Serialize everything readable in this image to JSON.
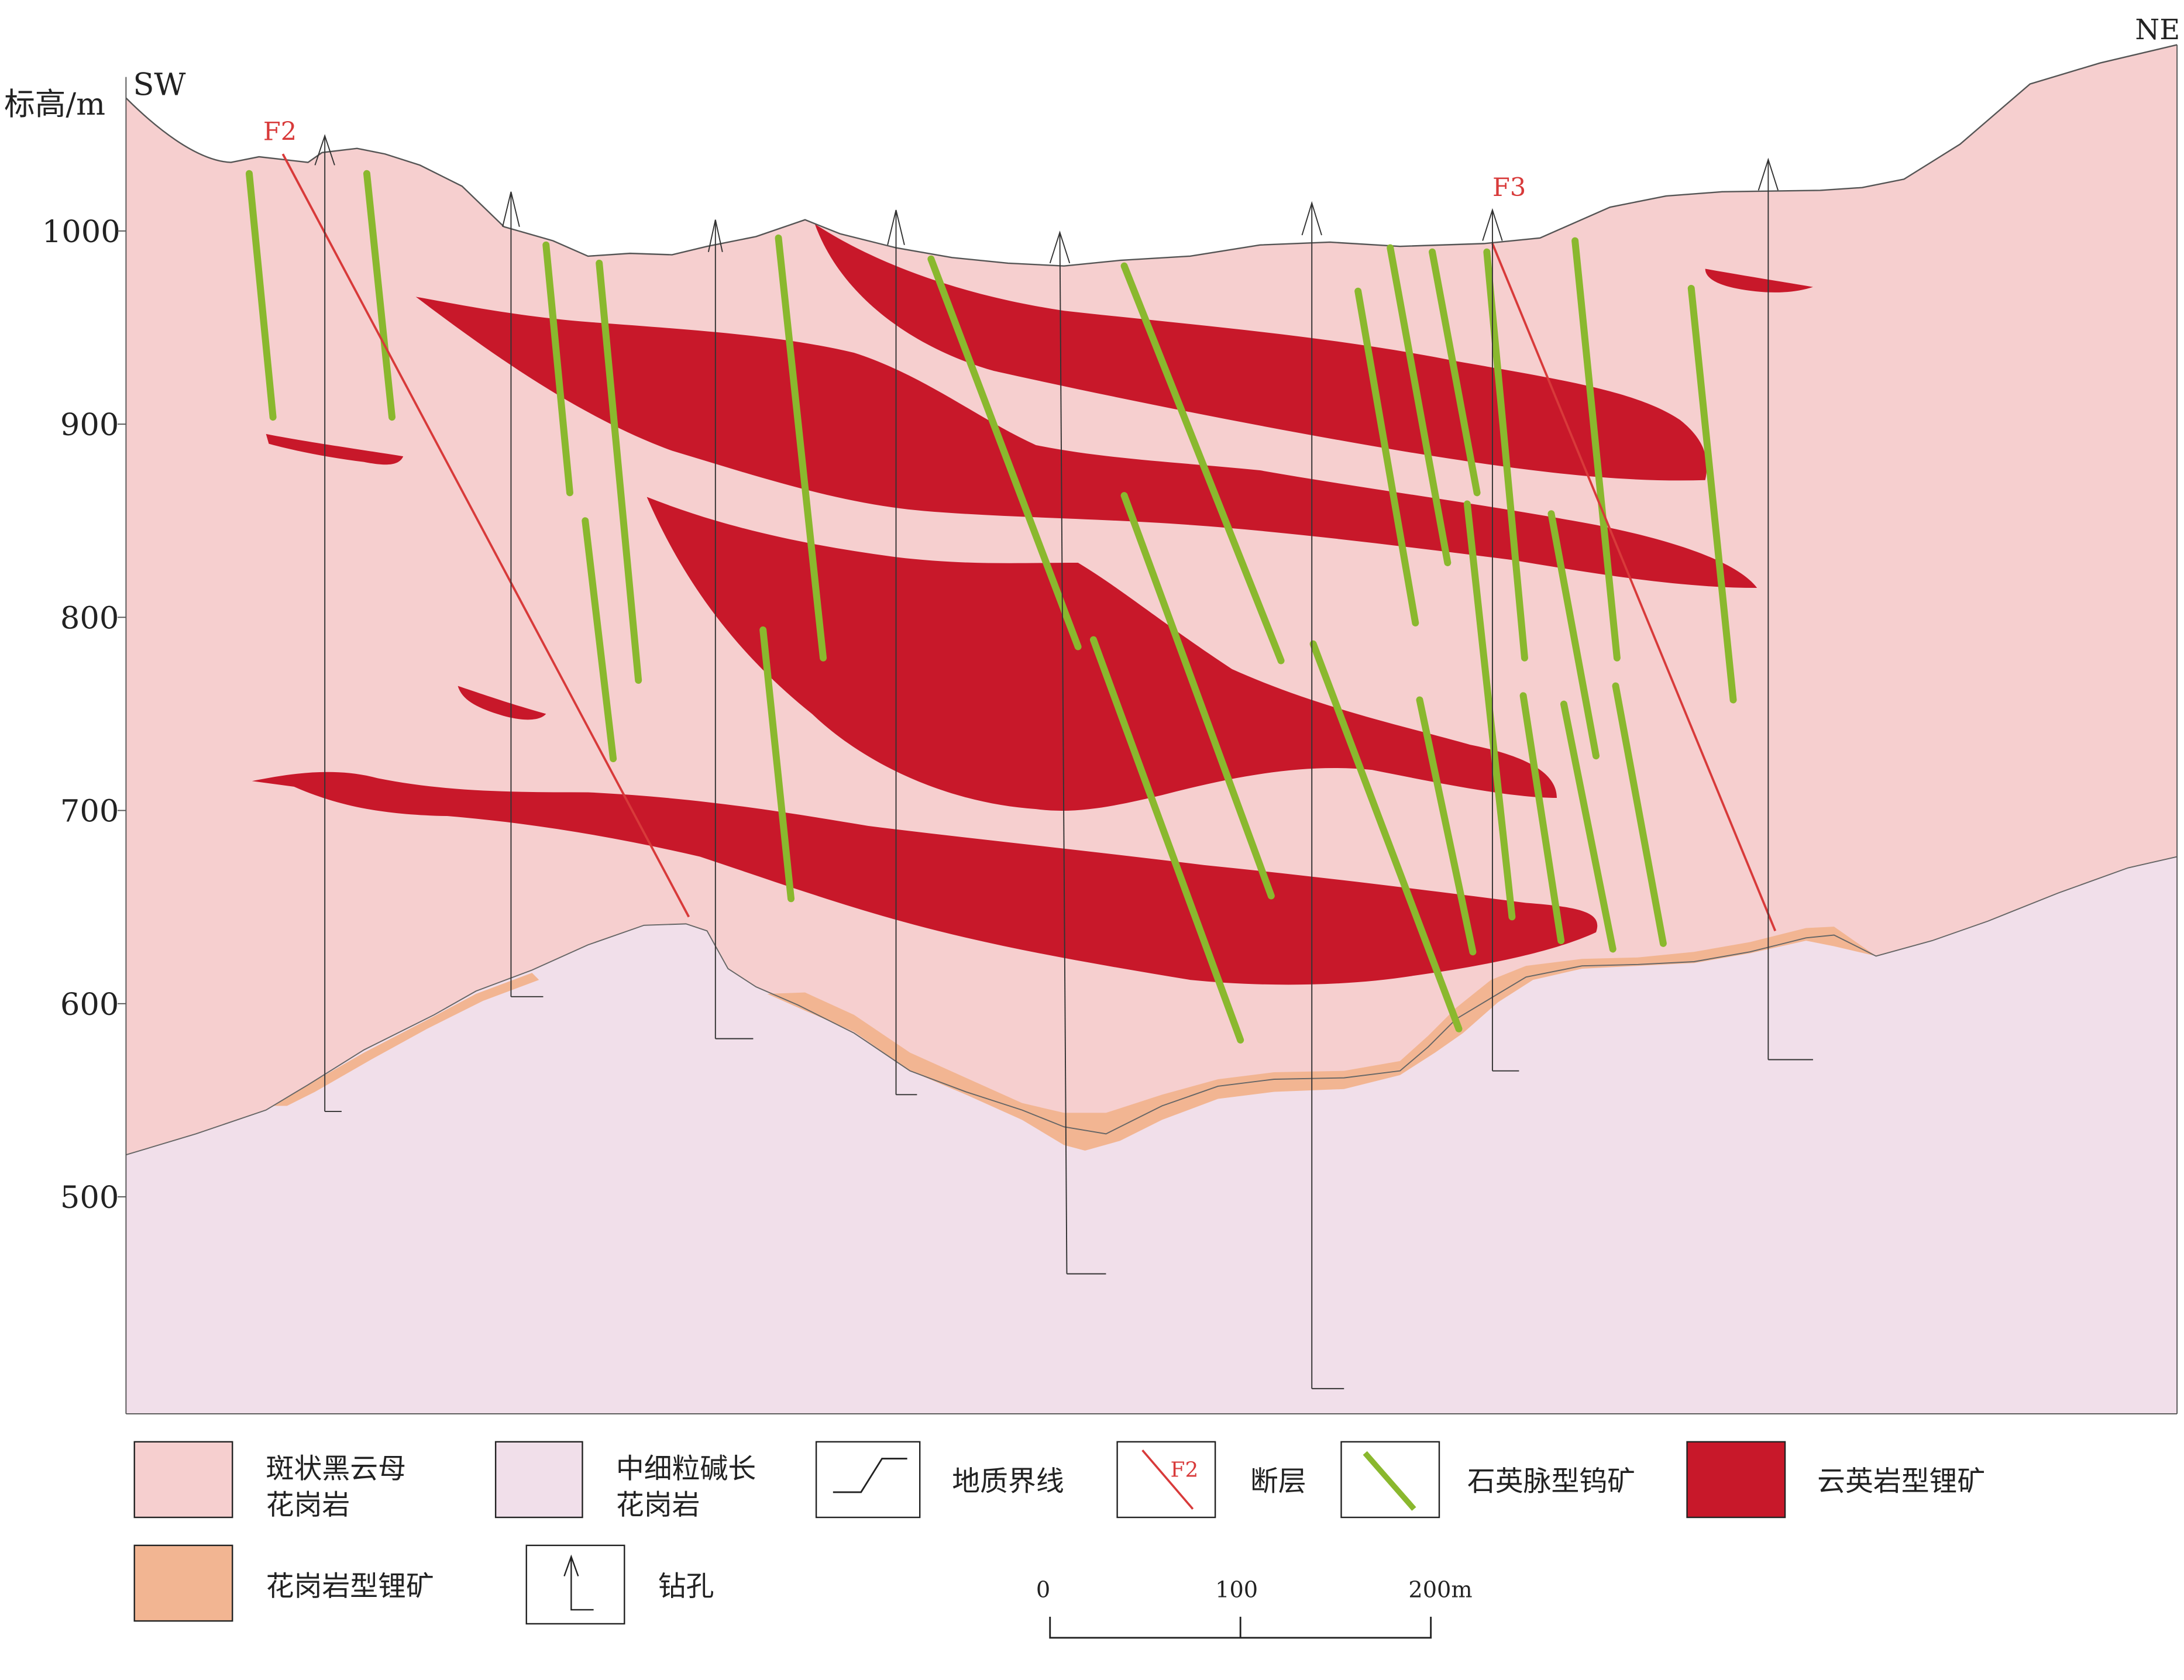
{
  "section": {
    "y_axis_label": "标高/m",
    "direction_left": "SW",
    "direction_right": "NE",
    "y_ticks": [
      "1000",
      "900",
      "800",
      "700",
      "600",
      "500"
    ],
    "faults": [
      {
        "id": "f2",
        "label": "F2"
      },
      {
        "id": "f3",
        "label": "F3"
      }
    ]
  },
  "legend": {
    "items": [
      {
        "key": "porphyritic-granite",
        "lines": [
          "斑状黑云母",
          "花岗岩"
        ],
        "color": "#f6cfcf"
      },
      {
        "key": "alkali-feldspar-granite",
        "lines": [
          "中细粒碱长",
          "花岗岩"
        ],
        "color": "#f1dfea"
      },
      {
        "key": "geologic-boundary",
        "lines": [
          "地质界线"
        ]
      },
      {
        "key": "fault",
        "lines": [
          "断层"
        ],
        "symbol_text": "F2",
        "color": "#d83a3a"
      },
      {
        "key": "quartz-vein-tungsten",
        "lines": [
          "石英脉型钨矿"
        ],
        "color": "#8ab82e"
      },
      {
        "key": "greisen-lithium",
        "lines": [
          "云英岩型锂矿"
        ],
        "color": "#c8182a"
      },
      {
        "key": "granite-lithium",
        "lines": [
          "花岗岩型锂矿"
        ],
        "color": "#f2b592"
      },
      {
        "key": "borehole",
        "lines": [
          "钻孔"
        ]
      }
    ]
  },
  "scale_bar": {
    "labels": [
      "0",
      "100",
      "200m"
    ]
  }
}
